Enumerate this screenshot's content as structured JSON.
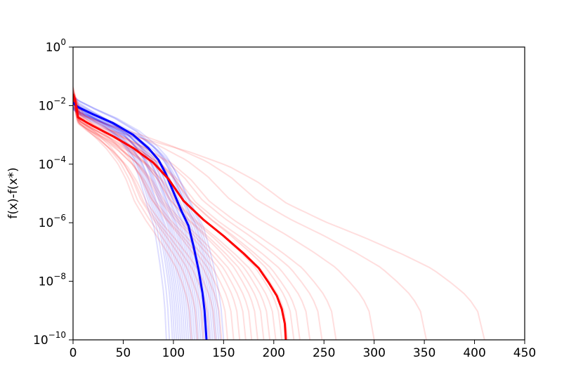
{
  "chart_data": {
    "type": "line",
    "title": "",
    "xlabel": "",
    "ylabel": "f(x)-f(x*)",
    "xlim": [
      0,
      450
    ],
    "ylim_exponent": [
      -10,
      0
    ],
    "yscale": "log",
    "grid": false,
    "x_ticks": [
      "0",
      "50",
      "100",
      "150",
      "200",
      "250",
      "300",
      "350",
      "400",
      "450"
    ],
    "y_ticks": [
      {
        "base": "10",
        "exp": "0"
      },
      {
        "base": "10",
        "exp": "−2"
      },
      {
        "base": "10",
        "exp": "−4"
      },
      {
        "base": "10",
        "exp": "−6"
      },
      {
        "base": "10",
        "exp": "−8"
      },
      {
        "base": "10",
        "exp": "−10"
      }
    ],
    "colors": {
      "blue": "#0000ff",
      "red": "#ff0000"
    },
    "series": [
      {
        "color": "#0000ff",
        "role": "mean",
        "x": [
          0,
          5,
          20,
          40,
          60,
          75,
          85,
          92,
          100,
          108,
          115,
          120,
          125,
          129,
          131,
          132,
          133
        ],
        "log10_y": [
          -1.9,
          -2.05,
          -2.3,
          -2.6,
          -3.0,
          -3.45,
          -3.85,
          -4.3,
          -4.95,
          -5.6,
          -6.1,
          -6.8,
          -7.6,
          -8.4,
          -9.0,
          -9.5,
          -10
        ]
      },
      {
        "color": "#ff0000",
        "role": "mean",
        "x": [
          0,
          2,
          4,
          5,
          20,
          40,
          60,
          80,
          95,
          110,
          130,
          150,
          170,
          185,
          195,
          203,
          208,
          211,
          212
        ],
        "log10_y": [
          -1.6,
          -1.8,
          -2.15,
          -2.4,
          -2.7,
          -3.05,
          -3.45,
          -3.95,
          -4.5,
          -5.25,
          -5.9,
          -6.45,
          -7.05,
          -7.55,
          -8.05,
          -8.5,
          -8.95,
          -9.45,
          -10
        ]
      }
    ],
    "faint_runs": [
      {
        "color": "#0000ff",
        "end_x": [
          93,
          96,
          99,
          101,
          103,
          105,
          107,
          109,
          111,
          113,
          115,
          117,
          119,
          121,
          123,
          125,
          127,
          129,
          131,
          133,
          135,
          137,
          139,
          141,
          143,
          145,
          147,
          150
        ]
      },
      {
        "color": "#ff0000",
        "end_x": [
          118,
          124,
          130,
          136,
          142,
          148,
          154,
          160,
          166,
          172,
          178,
          184,
          190,
          196,
          202,
          208,
          214,
          220,
          226,
          236,
          248,
          262,
          300,
          352,
          410
        ]
      }
    ]
  }
}
